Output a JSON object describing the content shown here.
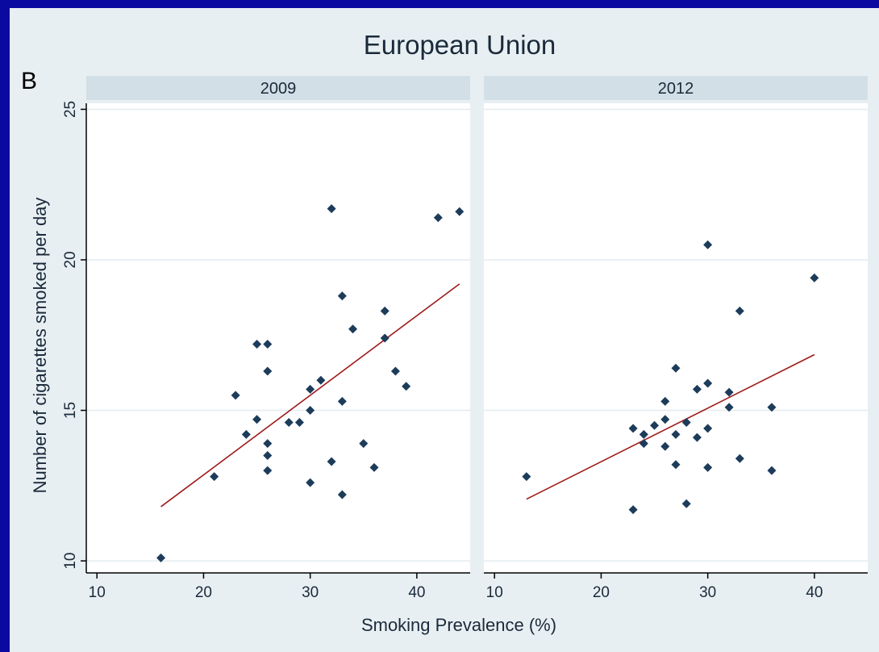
{
  "chart_data": {
    "type": "scatter",
    "title": "European Union",
    "panel_letter": "B",
    "xlabel": "Smoking Prevalence (%)",
    "ylabel": "Number of cigarettes smoked per day",
    "xlim": [
      9,
      45
    ],
    "ylim": [
      9.6,
      25.2
    ],
    "xticks": [
      10,
      20,
      30,
      40
    ],
    "yticks": [
      10,
      15,
      20,
      25
    ],
    "grid": true,
    "colors": {
      "points": "#1c3c5a",
      "fit_line": "#9e1b1b",
      "panel_header": "#d2dfe6",
      "plot_bg": "#ffffff",
      "background": "#e8eff3"
    },
    "panels": [
      {
        "label": "2009",
        "points": [
          {
            "x": 16,
            "y": 10.1
          },
          {
            "x": 21,
            "y": 12.8
          },
          {
            "x": 23,
            "y": 15.5
          },
          {
            "x": 24,
            "y": 14.2
          },
          {
            "x": 25,
            "y": 17.2
          },
          {
            "x": 25,
            "y": 14.7
          },
          {
            "x": 26,
            "y": 17.2
          },
          {
            "x": 26,
            "y": 16.3
          },
          {
            "x": 26,
            "y": 13.9
          },
          {
            "x": 26,
            "y": 13.5
          },
          {
            "x": 26,
            "y": 13.0
          },
          {
            "x": 28,
            "y": 14.6
          },
          {
            "x": 29,
            "y": 14.6
          },
          {
            "x": 30,
            "y": 15.7
          },
          {
            "x": 30,
            "y": 15.0
          },
          {
            "x": 30,
            "y": 12.6
          },
          {
            "x": 31,
            "y": 16.0
          },
          {
            "x": 32,
            "y": 21.7
          },
          {
            "x": 32,
            "y": 13.3
          },
          {
            "x": 33,
            "y": 18.8
          },
          {
            "x": 33,
            "y": 15.3
          },
          {
            "x": 33,
            "y": 12.2
          },
          {
            "x": 34,
            "y": 17.7
          },
          {
            "x": 35,
            "y": 13.9
          },
          {
            "x": 36,
            "y": 13.1
          },
          {
            "x": 37,
            "y": 18.3
          },
          {
            "x": 37,
            "y": 17.4
          },
          {
            "x": 38,
            "y": 16.3
          },
          {
            "x": 39,
            "y": 15.8
          },
          {
            "x": 42,
            "y": 21.4
          },
          {
            "x": 44,
            "y": 21.6
          }
        ],
        "fit": {
          "x": [
            16,
            44
          ],
          "y": [
            11.8,
            19.2
          ]
        }
      },
      {
        "label": "2012",
        "points": [
          {
            "x": 13,
            "y": 12.8
          },
          {
            "x": 23,
            "y": 14.4
          },
          {
            "x": 23,
            "y": 11.7
          },
          {
            "x": 24,
            "y": 14.2
          },
          {
            "x": 24,
            "y": 13.9
          },
          {
            "x": 25,
            "y": 14.5
          },
          {
            "x": 26,
            "y": 15.3
          },
          {
            "x": 26,
            "y": 14.7
          },
          {
            "x": 26,
            "y": 13.8
          },
          {
            "x": 27,
            "y": 16.4
          },
          {
            "x": 27,
            "y": 14.2
          },
          {
            "x": 27,
            "y": 13.2
          },
          {
            "x": 28,
            "y": 14.6
          },
          {
            "x": 28,
            "y": 11.9
          },
          {
            "x": 29,
            "y": 15.7
          },
          {
            "x": 29,
            "y": 14.1
          },
          {
            "x": 30,
            "y": 20.5
          },
          {
            "x": 30,
            "y": 15.9
          },
          {
            "x": 30,
            "y": 14.4
          },
          {
            "x": 30,
            "y": 13.1
          },
          {
            "x": 32,
            "y": 15.6
          },
          {
            "x": 32,
            "y": 15.1
          },
          {
            "x": 33,
            "y": 18.3
          },
          {
            "x": 33,
            "y": 13.4
          },
          {
            "x": 36,
            "y": 15.1
          },
          {
            "x": 36,
            "y": 13.0
          },
          {
            "x": 40,
            "y": 19.4
          }
        ],
        "fit": {
          "x": [
            13,
            40
          ],
          "y": [
            12.05,
            16.85
          ]
        }
      }
    ]
  }
}
